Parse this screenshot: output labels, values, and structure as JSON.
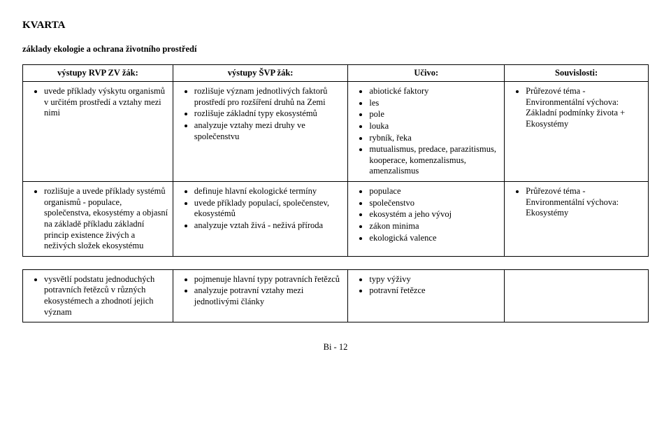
{
  "title": "KVARTA",
  "subtitle": "základy ekologie a ochrana životního prostředí",
  "headers": [
    "výstupy RVP ZV žák:",
    "výstupy ŠVP žák:",
    "Učivo:",
    "Souvislosti:"
  ],
  "table1": {
    "rows": [
      {
        "c1": [
          "uvede příklady výskytu organismů v určitém prostředí a vztahy mezi nimi"
        ],
        "c2": [
          "rozlišuje význam jednotlivých faktorů prostředí pro rozšíření druhů na Zemi",
          "rozlišuje základní typy ekosystémů",
          "analyzuje vztahy mezi druhy ve společenstvu"
        ],
        "c3": [
          "abiotické faktory",
          "les",
          "pole",
          "louka",
          "rybník, řeka",
          "mutualismus, predace, parazitismus, kooperace, komenzalismus, amenzalismus"
        ],
        "c4": [
          "Průřezové téma - Environmentální výchova: Základní podmínky života + Ekosystémy"
        ]
      },
      {
        "c1": [
          "rozlišuje a uvede příklady systémů organismů - populace, společenstva, ekosystémy a objasní na základě příkladu základní princip existence živých a neživých složek ekosystému"
        ],
        "c2": [
          "definuje hlavní ekologické termíny",
          "uvede příklady populací, společenstev, ekosystémů",
          "analyzuje vztah živá - neživá příroda"
        ],
        "c3": [
          "populace",
          "společenstvo",
          "ekosystém a jeho vývoj",
          "zákon minima",
          "ekologická valence"
        ],
        "c4": [
          "Průřezové téma - Environmentální výchova: Ekosystémy"
        ]
      }
    ]
  },
  "table2": {
    "rows": [
      {
        "c1": [
          "vysvětlí podstatu jednoduchých potravních řetězců v různých ekosystémech a zhodnotí jejich význam"
        ],
        "c2": [
          "pojmenuje hlavní typy potravních řetězců",
          "analyzuje potravní vztahy mezi jednotlivými články"
        ],
        "c3": [
          "typy výživy",
          "potravní řetězce"
        ],
        "c4": []
      }
    ]
  },
  "footer": "Bi - 12"
}
